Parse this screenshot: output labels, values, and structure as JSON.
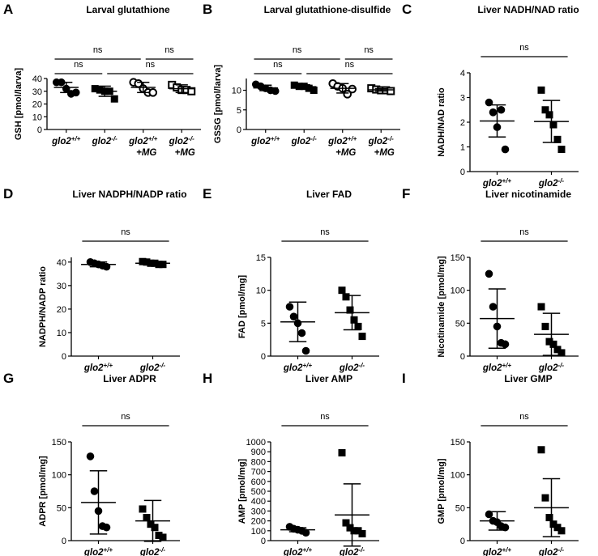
{
  "chart_data": [
    {
      "type": "scatter",
      "panel": "A",
      "title": "Larval glutathione",
      "ylabel": "GSH [pmol/larva]",
      "color": "#000000",
      "categories": [
        {
          "name": "glo2",
          "sup": "+/+"
        },
        {
          "name": "glo2",
          "sup": "-/-"
        },
        {
          "name": "glo2",
          "sup": "+/+",
          "line2": "+MG"
        },
        {
          "name": "glo2",
          "sup": "-/-",
          "line2": "+MG"
        }
      ],
      "markers": [
        "circle",
        "square",
        "open-circle",
        "open-square"
      ],
      "points": [
        [
          37,
          37,
          32,
          28,
          29
        ],
        [
          32,
          31,
          30,
          30,
          24
        ],
        [
          37,
          36,
          32,
          29,
          29
        ],
        [
          35,
          33,
          31,
          31,
          30
        ]
      ],
      "mean": [
        33,
        30,
        33,
        32
      ],
      "sd": [
        4,
        4,
        4,
        3
      ],
      "ylim": [
        0,
        40
      ],
      "yticks": [
        0,
        10,
        20,
        30,
        40
      ],
      "brackets": [
        [
          {
            "from": 0,
            "to": 2,
            "label": "ns"
          },
          {
            "from": 2,
            "to": 3,
            "label": "ns"
          }
        ],
        [
          {
            "from": 0,
            "to": 1,
            "label": "ns"
          },
          {
            "from": 1,
            "to": 3,
            "label": "ns"
          }
        ]
      ]
    },
    {
      "type": "scatter",
      "panel": "B",
      "title": "Larval glutathione-disulfide",
      "ylabel": "GSSG [pmol/larva]",
      "color": "#000000",
      "categories": [
        {
          "name": "glo2",
          "sup": "+/+"
        },
        {
          "name": "glo2",
          "sup": "-/-"
        },
        {
          "name": "glo2",
          "sup": "+/+",
          "line2": "+MG"
        },
        {
          "name": "glo2",
          "sup": "-/-",
          "line2": "+MG"
        }
      ],
      "markers": [
        "circle",
        "square",
        "open-circle",
        "open-square"
      ],
      "points": [
        [
          11.5,
          11,
          10.5,
          10,
          9.8
        ],
        [
          11.3,
          11,
          11,
          10.5,
          10
        ],
        [
          11.7,
          11,
          10.5,
          9,
          10.3
        ],
        [
          10.5,
          10.2,
          10,
          10,
          9.8
        ]
      ],
      "mean": [
        10.6,
        10.9,
        10.5,
        10.1
      ],
      "sd": [
        0.7,
        0.5,
        1.2,
        0.3
      ],
      "ylim": [
        0,
        13
      ],
      "yticks": [
        0,
        5,
        10
      ],
      "brackets": [
        [
          {
            "from": 0,
            "to": 2,
            "label": "ns"
          },
          {
            "from": 2,
            "to": 3,
            "label": "ns"
          }
        ],
        [
          {
            "from": 0,
            "to": 1,
            "label": "ns"
          },
          {
            "from": 1,
            "to": 3,
            "label": "ns"
          }
        ]
      ]
    },
    {
      "type": "scatter",
      "panel": "C",
      "title": "Liver NADH/NAD ratio",
      "ylabel": "NADH/NAD ratio",
      "color": "#000000",
      "categories": [
        {
          "name": "glo2",
          "sup": "+/+"
        },
        {
          "name": "glo2",
          "sup": "-/-"
        }
      ],
      "markers": [
        "circle",
        "square"
      ],
      "points": [
        [
          2.8,
          2.4,
          1.8,
          2.5,
          0.9
        ],
        [
          3.3,
          2.5,
          2.3,
          1.9,
          1.3,
          0.9
        ]
      ],
      "mean": [
        2.05,
        2.03
      ],
      "sd": [
        0.65,
        0.85
      ],
      "ylim": [
        0,
        4
      ],
      "yticks": [
        0,
        1,
        2,
        3,
        4
      ],
      "brackets": [
        [
          {
            "from": 0,
            "to": 1,
            "label": "ns"
          }
        ]
      ]
    },
    {
      "type": "scatter",
      "panel": "D",
      "title": "Liver NADPH/NADP ratio",
      "ylabel": "NADPH/NADP ratio",
      "color": "#000000",
      "categories": [
        {
          "name": "glo2",
          "sup": "+/+"
        },
        {
          "name": "glo2",
          "sup": "-/-"
        }
      ],
      "markers": [
        "circle",
        "square"
      ],
      "points": [
        [
          40,
          39.5,
          39,
          38.5,
          38
        ],
        [
          40.2,
          40,
          39.5,
          39.5,
          39,
          39
        ]
      ],
      "mean": [
        39,
        39.5
      ],
      "sd": [
        1,
        0.7
      ],
      "ylim": [
        0,
        42
      ],
      "yticks": [
        0,
        10,
        20,
        30,
        40
      ],
      "brackets": [
        [
          {
            "from": 0,
            "to": 1,
            "label": "ns"
          }
        ]
      ]
    },
    {
      "type": "scatter",
      "panel": "E",
      "title": "Liver FAD",
      "ylabel": "FAD [pmol/mg]",
      "color": "#000000",
      "categories": [
        {
          "name": "glo2",
          "sup": "+/+"
        },
        {
          "name": "glo2",
          "sup": "-/-"
        }
      ],
      "markers": [
        "circle",
        "square"
      ],
      "points": [
        [
          7.5,
          6,
          5,
          3.5,
          0.8
        ],
        [
          10,
          9,
          7,
          5.5,
          4.5,
          3
        ]
      ],
      "mean": [
        5.2,
        6.6
      ],
      "sd": [
        3,
        2.6
      ],
      "ylim": [
        0,
        15
      ],
      "yticks": [
        0,
        5,
        10,
        15
      ],
      "brackets": [
        [
          {
            "from": 0,
            "to": 1,
            "label": "ns"
          }
        ]
      ]
    },
    {
      "type": "scatter",
      "panel": "F",
      "title": "Liver nicotinamide",
      "ylabel": "Nicotinamide [pmol/mg]",
      "color": "#000000",
      "categories": [
        {
          "name": "glo2",
          "sup": "+/+"
        },
        {
          "name": "glo2",
          "sup": "-/-"
        }
      ],
      "markers": [
        "circle",
        "square"
      ],
      "points": [
        [
          125,
          75,
          45,
          20,
          18
        ],
        [
          75,
          45,
          22,
          18,
          10,
          5
        ]
      ],
      "mean": [
        57,
        33
      ],
      "sd": [
        45,
        32
      ],
      "ylim": [
        0,
        150
      ],
      "yticks": [
        0,
        50,
        100,
        150
      ],
      "brackets": [
        [
          {
            "from": 0,
            "to": 1,
            "label": "ns"
          }
        ]
      ]
    },
    {
      "type": "scatter",
      "panel": "G",
      "title": "Liver ADPR",
      "ylabel": "ADPR [pmol/mg]",
      "color": "#000000",
      "categories": [
        {
          "name": "glo2",
          "sup": "+/+"
        },
        {
          "name": "glo2",
          "sup": "-/-"
        }
      ],
      "markers": [
        "circle",
        "square"
      ],
      "points": [
        [
          128,
          75,
          45,
          22,
          20
        ],
        [
          48,
          35,
          25,
          20,
          8,
          5
        ]
      ],
      "mean": [
        58,
        30
      ],
      "sd": [
        48,
        31
      ],
      "ylim": [
        0,
        150
      ],
      "yticks": [
        0,
        50,
        100,
        150
      ],
      "brackets": [
        [
          {
            "from": 0,
            "to": 1,
            "label": "ns"
          }
        ]
      ]
    },
    {
      "type": "scatter",
      "panel": "H",
      "title": "Liver AMP",
      "ylabel": "AMP [pmol/mg]",
      "color": "#000000",
      "categories": [
        {
          "name": "glo2",
          "sup": "+/+"
        },
        {
          "name": "glo2",
          "sup": "-/-"
        }
      ],
      "markers": [
        "circle",
        "square"
      ],
      "points": [
        [
          140,
          120,
          110,
          100,
          80
        ],
        [
          890,
          180,
          130,
          100,
          100,
          70
        ]
      ],
      "mean": [
        110,
        260
      ],
      "sd": [
        20,
        315
      ],
      "ylim": [
        0,
        1000
      ],
      "yticks": [
        0,
        100,
        200,
        300,
        400,
        500,
        600,
        700,
        800,
        900,
        1000
      ],
      "brackets": [
        [
          {
            "from": 0,
            "to": 1,
            "label": "ns"
          }
        ]
      ]
    },
    {
      "type": "scatter",
      "panel": "I",
      "title": "Liver GMP",
      "ylabel": "GMP [pmol/mg]",
      "color": "#000000",
      "categories": [
        {
          "name": "glo2",
          "sup": "+/+"
        },
        {
          "name": "glo2",
          "sup": "-/-"
        }
      ],
      "markers": [
        "circle",
        "square"
      ],
      "points": [
        [
          40,
          30,
          28,
          22,
          20
        ],
        [
          138,
          65,
          35,
          25,
          20,
          15
        ]
      ],
      "mean": [
        30,
        50
      ],
      "sd": [
        14,
        44
      ],
      "ylim": [
        0,
        150
      ],
      "yticks": [
        0,
        50,
        100,
        150
      ],
      "brackets": [
        [
          {
            "from": 0,
            "to": 1,
            "label": "ns"
          }
        ]
      ]
    }
  ]
}
